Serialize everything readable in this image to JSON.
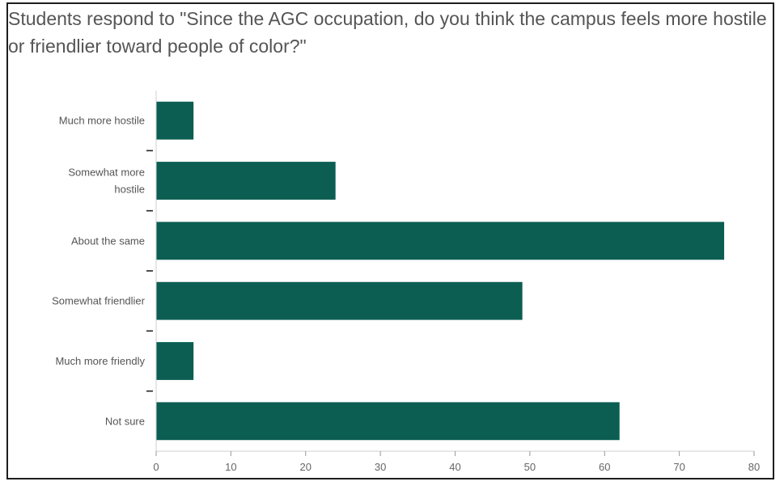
{
  "chart_data": {
    "type": "bar",
    "orientation": "horizontal",
    "title": "Students respond to \"Since the AGC occupation, do you think the campus feels more hostile or friendlier toward people of color?\"",
    "categories": [
      "Much more hostile",
      "Somewhat more hostile",
      "About the same",
      "Somewhat friendlier",
      "Much more friendly",
      "Not sure"
    ],
    "values": [
      5,
      24,
      76,
      49,
      5,
      62
    ],
    "xlim": [
      0,
      80
    ],
    "xticks": [
      0,
      10,
      20,
      30,
      40,
      50,
      60,
      70,
      80
    ],
    "bar_color": "#0b5e51",
    "grid": false
  }
}
